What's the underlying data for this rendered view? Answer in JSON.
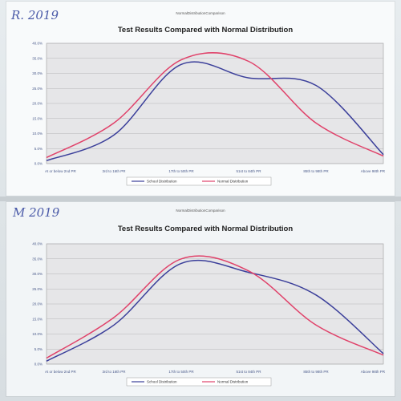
{
  "charts": [
    {
      "annotation": "R. 2019",
      "header": "NormalDistributionComparison",
      "chart_data": {
        "type": "line",
        "title": "Test Results Compared with Normal Distribution",
        "categories": [
          "At or below 2nd PR",
          "3rd to 16th PR",
          "17th to 50th PR",
          "51st to 84th PR",
          "85th to 98th PR",
          "Above 98th PR"
        ],
        "ylim": [
          0,
          40
        ],
        "yticks": [
          "0.0%",
          "5.0%",
          "10.0%",
          "15.0%",
          "20.0%",
          "25.0%",
          "30.0%",
          "35.0%",
          "40.0%"
        ],
        "grid": true,
        "legend": "bottom",
        "series": [
          {
            "name": "School Distribution",
            "values": [
              1.0,
              9.5,
              33.0,
              28.5,
              26.0,
              3.0
            ],
            "color": "#3b3f9a"
          },
          {
            "name": "Normal Distribution",
            "values": [
              2.0,
              13.5,
              34.5,
              34.0,
              13.5,
              2.5
            ],
            "color": "#e0426a"
          }
        ]
      }
    },
    {
      "annotation": "M 2019",
      "header": "NormalDistributionComparison",
      "chart_data": {
        "type": "line",
        "title": "Test Results Compared with Normal Distribution",
        "categories": [
          "At or below 2nd PR",
          "3rd to 16th PR",
          "17th to 50th PR",
          "51st to 84th PR",
          "85th to 98th PR",
          "Above 98th PR"
        ],
        "ylim": [
          0,
          40
        ],
        "yticks": [
          "0.0%",
          "5.0%",
          "10.0%",
          "15.0%",
          "20.0%",
          "25.0%",
          "30.0%",
          "35.0%",
          "40.0%"
        ],
        "grid": true,
        "legend": "bottom",
        "series": [
          {
            "name": "School Distribution",
            "values": [
              1.0,
              13.0,
              33.5,
              30.5,
              23.0,
              3.5
            ],
            "color": "#3b3f9a"
          },
          {
            "name": "Normal Distribution",
            "values": [
              2.0,
              15.5,
              35.0,
              31.0,
              13.0,
              3.0
            ],
            "color": "#e0426a"
          }
        ]
      }
    }
  ]
}
